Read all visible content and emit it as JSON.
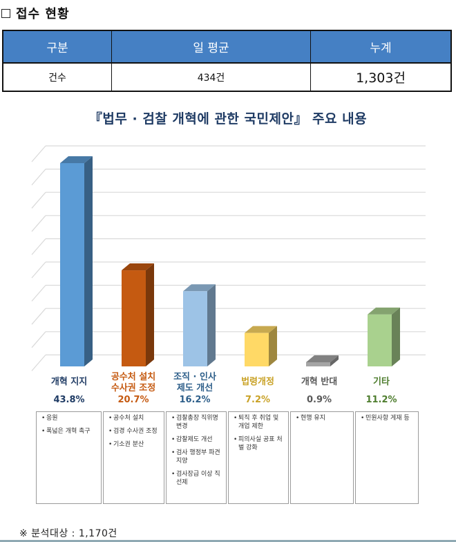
{
  "section": {
    "title": "접수 현황"
  },
  "summary_table": {
    "headers": [
      "구분",
      "일 평균",
      "누계"
    ],
    "row": [
      "건수",
      "434건",
      "1,303건"
    ]
  },
  "chart_title": "『법무 · 검찰 개혁에 관한 국민제안』 주요 내용",
  "chart_data": {
    "type": "bar",
    "title": "『법무 · 검찰 개혁에 관한 국민제안』 주요 내용",
    "categories": [
      "개혁 지지",
      "공수처 설치 수사권 조정",
      "조직 · 인사 제도 개선",
      "법령개정",
      "개혁 반대",
      "기타"
    ],
    "values": [
      43.8,
      20.7,
      16.2,
      7.2,
      0.9,
      11.2
    ],
    "unit": "%",
    "xlabel": "",
    "ylabel": "",
    "grid": true,
    "style": "3d-column",
    "colors": [
      "#5b9bd5",
      "#c55a11",
      "#9dc3e6",
      "#ffd966",
      "#a5a5a5",
      "#a9d18e"
    ]
  },
  "categories": [
    {
      "label_lines": [
        "개혁 지지"
      ],
      "pct": "43.8%",
      "color": "#1f3b64",
      "details": [
        "응원",
        "폭넓은 개혁 촉구"
      ]
    },
    {
      "label_lines": [
        "공수처 설치",
        "수사권 조정"
      ],
      "pct": "20.7%",
      "color": "#c55a11",
      "details": [
        "공수처 설치",
        "검경 수사권 조정",
        "기소권 분산"
      ]
    },
    {
      "label_lines": [
        "조직 · 인사",
        "제도 개선"
      ],
      "pct": "16.2%",
      "color": "#2e5f8a",
      "details": [
        "검찰총장 직위명 변경",
        "감찰제도 개선",
        "검사 행정부 파견 지양",
        "검사장급 이상 직선제"
      ]
    },
    {
      "label_lines": [
        "법령개정"
      ],
      "pct": "7.2%",
      "color": "#c9a227",
      "details": [
        "퇴직 후 취업 및 개업 제한",
        "피의사실 공표 처벌 강화"
      ]
    },
    {
      "label_lines": [
        "개혁 반대"
      ],
      "pct": "0.9%",
      "color": "#595959",
      "details": [
        "현행 유지"
      ]
    },
    {
      "label_lines": [
        "기타"
      ],
      "pct": "11.2%",
      "color": "#4e7d2e",
      "details": [
        "민원사항 게재 등"
      ]
    }
  ],
  "footnote": "※ 분석대상 : 1,170건"
}
